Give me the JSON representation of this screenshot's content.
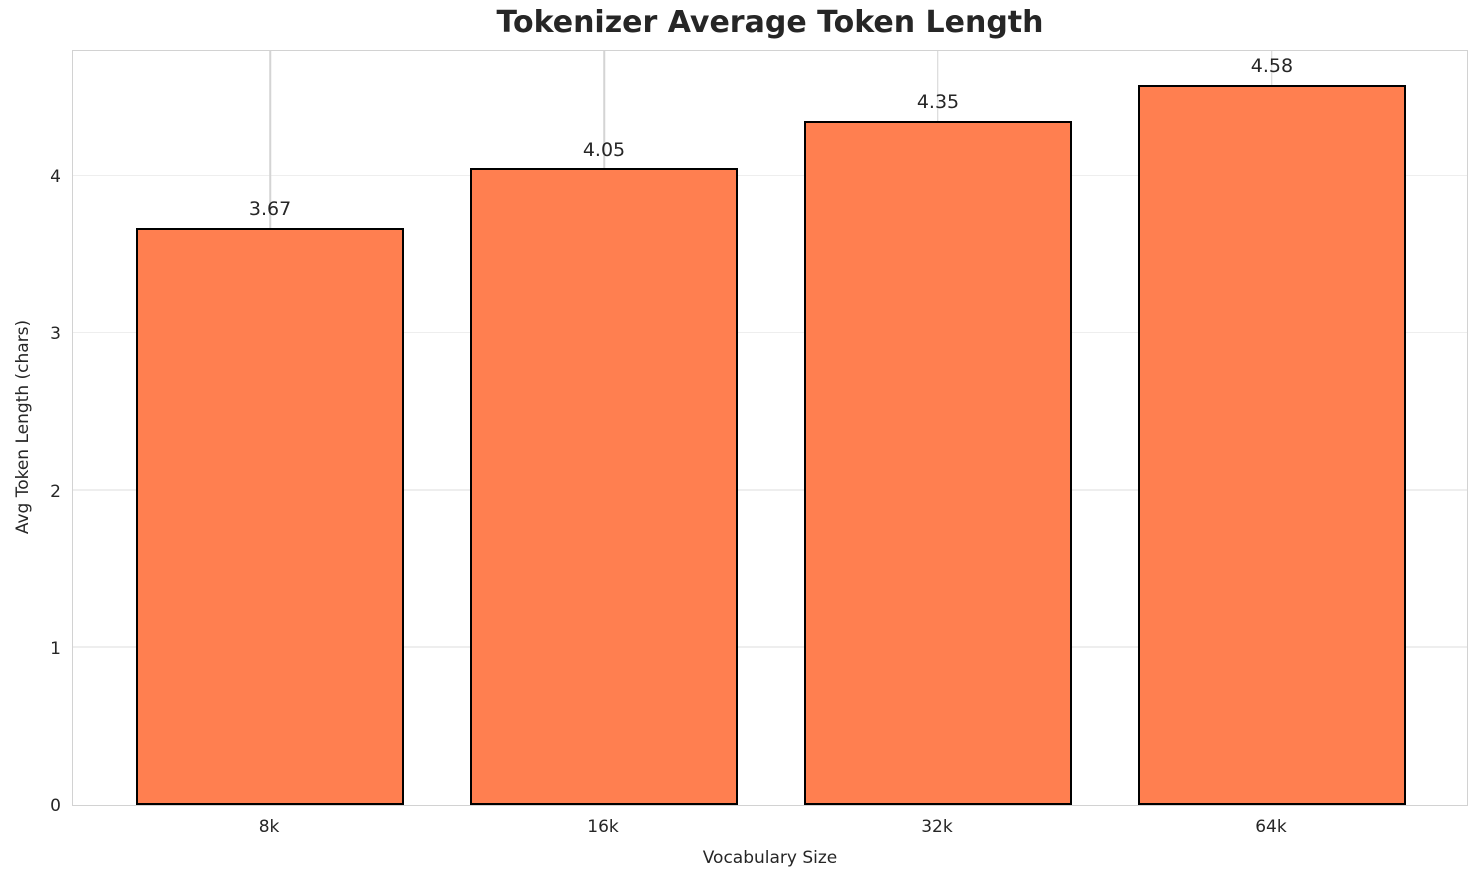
{
  "chart_data": {
    "type": "bar",
    "title": "Tokenizer Average Token Length",
    "xlabel": "Vocabulary Size",
    "ylabel": "Avg Token Length (chars)",
    "categories": [
      "8k",
      "16k",
      "32k",
      "64k"
    ],
    "values": [
      3.67,
      4.05,
      4.35,
      4.58
    ],
    "value_labels": [
      "3.67",
      "4.05",
      "4.35",
      "4.58"
    ],
    "yticks": [
      0,
      1,
      2,
      3,
      4
    ],
    "ylim": [
      0,
      4.81
    ],
    "xlim": [
      -0.59,
      3.59
    ],
    "bar_width_data_units": 0.8,
    "grid": true,
    "legend": "none",
    "colors": {
      "bar_fill": "#FF7F50",
      "bar_edge": "#000000",
      "text": "#262626",
      "spine": "#d2d2d2",
      "grid_vertical": "#d4d4d4",
      "grid_horizontal": "#eeeeee",
      "background": "#ffffff"
    }
  }
}
